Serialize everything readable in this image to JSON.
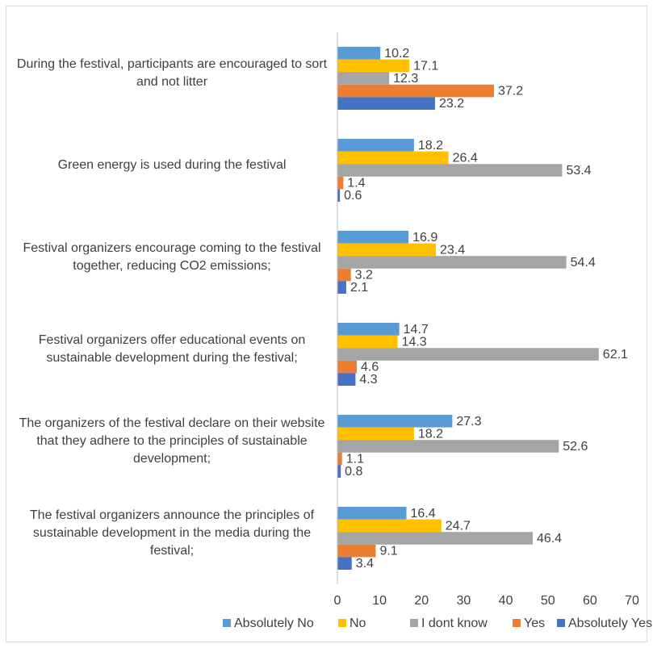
{
  "chart_data": {
    "type": "bar",
    "orientation": "horizontal",
    "categories": [
      "During the festival, participants are encouraged to sort and not litter",
      "Green energy is used during the festival",
      "Festival organizers encourage coming to the festival together, reducing CO2 emissions;",
      "Festival organizers offer educational events on sustainable development during the festival;",
      "The organizers of the festival declare on their website that they adhere to the principles of sustainable development;",
      "The festival organizers announce the principles of sustainable development in the media during the festival;"
    ],
    "series": [
      {
        "name": "Absolutely No",
        "color": "#5b9bd5",
        "values": [
          10.2,
          18.2,
          16.9,
          14.7,
          27.3,
          16.4
        ]
      },
      {
        "name": "No",
        "color": "#ffc000",
        "values": [
          17.1,
          26.4,
          23.4,
          14.3,
          18.2,
          24.7
        ]
      },
      {
        "name": "I dont know",
        "color": "#a5a5a5",
        "values": [
          12.3,
          53.4,
          54.4,
          62.1,
          52.6,
          46.4
        ]
      },
      {
        "name": "Yes",
        "color": "#ed7d31",
        "values": [
          37.2,
          1.4,
          3.2,
          4.6,
          1.1,
          9.1
        ]
      },
      {
        "name": "Absolutely Yes",
        "color": "#4472c4",
        "values": [
          23.2,
          0.6,
          2.1,
          4.3,
          0.8,
          3.4
        ]
      }
    ],
    "xlim": [
      0,
      70
    ],
    "xticks": [
      0,
      10,
      20,
      30,
      40,
      50,
      60,
      70
    ],
    "grid": false,
    "legend": "bottom"
  }
}
